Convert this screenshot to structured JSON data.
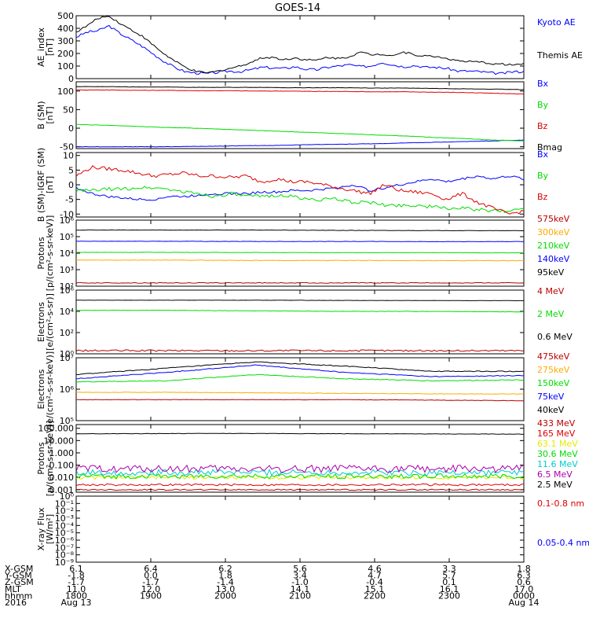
{
  "title": "GOES-14",
  "colors": {
    "black": "#000000",
    "blue": "#0000ff",
    "green": "#00dd00",
    "red": "#dd0000",
    "orange": "#ffaa00",
    "darkred": "#bb0000",
    "yellow": "#e8e800",
    "cyan": "#00cccc",
    "purple": "#aa00aa"
  },
  "chart_data": [
    {
      "type": "line",
      "ylabel": "AE_index\n[nT]",
      "yscale": "linear",
      "ylim": [
        0,
        500
      ],
      "yticks": [
        "500",
        "400",
        "300",
        "200",
        "100",
        "0"
      ],
      "series": [
        {
          "name": "Kyoto AE",
          "color": "blue",
          "noise": 10,
          "values": [
            330,
            370,
            380,
            420,
            360,
            310,
            260,
            200,
            140,
            90,
            55,
            45,
            40,
            50,
            60,
            55,
            70,
            90,
            85,
            80,
            95,
            75,
            70,
            90,
            100,
            110,
            95,
            100,
            130,
            110,
            95,
            105,
            90,
            90,
            80,
            60,
            60,
            55,
            45,
            40,
            55,
            55
          ]
        },
        {
          "name": "Themis AE",
          "color": "black",
          "noise": 8,
          "values": [
            370,
            420,
            480,
            500,
            440,
            390,
            340,
            270,
            200,
            140,
            90,
            55,
            45,
            60,
            80,
            100,
            130,
            165,
            170,
            150,
            165,
            150,
            145,
            170,
            160,
            175,
            210,
            190,
            195,
            185,
            210,
            190,
            180,
            175,
            160,
            140,
            135,
            130,
            120,
            115,
            110,
            115
          ]
        }
      ]
    },
    {
      "type": "line",
      "ylabel": "B (SM)\n[nT]",
      "yscale": "linear",
      "ylim": [
        -55,
        125
      ],
      "yticks": [
        "100",
        "50",
        "0",
        "-50"
      ],
      "series": [
        {
          "name": "Bx",
          "color": "blue",
          "noise": 0.5,
          "values": [
            -50,
            -50,
            -50,
            -50,
            -49,
            -48,
            -47,
            -46,
            -44,
            -43,
            -42,
            -40,
            -38,
            -36,
            -34,
            -32
          ]
        },
        {
          "name": "By",
          "color": "green",
          "noise": 0.5,
          "values": [
            10,
            8,
            5,
            2,
            0,
            -3,
            -6,
            -9,
            -12,
            -15,
            -18,
            -21,
            -25,
            -28,
            -32,
            -34
          ]
        },
        {
          "name": "Bz",
          "color": "red",
          "noise": 0.6,
          "values": [
            103,
            103,
            102,
            102,
            101,
            101,
            100,
            100,
            99,
            99,
            98,
            98,
            97,
            96,
            94,
            92
          ]
        },
        {
          "name": "Bmag",
          "color": "black",
          "noise": 0.4,
          "values": [
            112,
            112,
            111,
            111,
            110,
            110,
            110,
            109,
            109,
            109,
            108,
            108,
            107,
            106,
            105,
            104
          ]
        }
      ]
    },
    {
      "type": "line",
      "ylabel": "B (SM)-IGRF (SM)\n[nT]",
      "yscale": "linear",
      "ylim": [
        -11,
        11
      ],
      "yticks": [
        "10",
        "5",
        "0",
        "-5",
        "-10"
      ],
      "series": [
        {
          "name": "Bx",
          "color": "blue",
          "noise": 0.4,
          "values": [
            -1,
            -3,
            -4,
            -4.5,
            -5,
            -5,
            -4,
            -4,
            -3.5,
            -3,
            -3,
            -3,
            -2.5,
            -2.5,
            -2,
            -2,
            -1.5,
            -1,
            0,
            -2,
            -1,
            0,
            1,
            2,
            1,
            2,
            3,
            2,
            3,
            2
          ]
        },
        {
          "name": "By",
          "color": "green",
          "noise": 0.6,
          "values": [
            -2,
            -2,
            -1.5,
            -1.5,
            -1,
            -1,
            -1.5,
            -2.5,
            -3,
            -4,
            -3,
            -4,
            -4,
            -3.5,
            -4,
            -5,
            -5,
            -5,
            -6,
            -6,
            -7,
            -7,
            -7,
            -7.5,
            -8,
            -8,
            -8.5,
            -9,
            -9,
            -8
          ]
        },
        {
          "name": "Bz",
          "color": "red",
          "noise": 0.6,
          "values": [
            3,
            6,
            5.5,
            5,
            4,
            3,
            3.5,
            4,
            3,
            3,
            2.5,
            3,
            1,
            2,
            1,
            1,
            0,
            -1,
            -2,
            -3,
            0,
            -2,
            -2.5,
            -3,
            -5,
            -3,
            -6,
            -8,
            -10,
            -9
          ]
        }
      ]
    },
    {
      "type": "line",
      "ylabel": "Protons\n[p/(cm²-s-sr-keV)]",
      "yscale": "log",
      "ylim": [
        2,
        6
      ],
      "yticks": [
        "10⁶",
        "10⁵",
        "10⁴",
        "10³",
        "10²"
      ],
      "series": [
        {
          "name": "575keV",
          "color": "darkred",
          "noise": 0.02,
          "values": [
            2.2,
            2.2,
            2.2,
            2.2,
            2.2,
            2.2
          ]
        },
        {
          "name": "300keV",
          "color": "orange",
          "noise": 0.015,
          "values": [
            3.58,
            3.58,
            3.56,
            3.56,
            3.55,
            3.55
          ]
        },
        {
          "name": "210keV",
          "color": "green",
          "noise": 0.01,
          "values": [
            4.05,
            4.05,
            4.04,
            4.03,
            4.03,
            4.02
          ]
        },
        {
          "name": "140keV",
          "color": "blue",
          "noise": 0.01,
          "values": [
            4.72,
            4.72,
            4.71,
            4.71,
            4.7,
            4.7
          ]
        },
        {
          "name": "95keV",
          "color": "black",
          "noise": 0.01,
          "values": [
            5.4,
            5.4,
            5.4,
            5.38,
            5.37,
            5.36
          ]
        }
      ]
    },
    {
      "type": "line",
      "ylabel": "Electrons\n[e/(cm²-s-sr)]",
      "yscale": "log",
      "ylim": [
        0,
        6
      ],
      "yticks": [
        "10⁶",
        "10⁴",
        "10²",
        "10⁰"
      ],
      "series": [
        {
          "name": "4 MeV",
          "color": "darkred",
          "noise": 0.08,
          "values": [
            0.3,
            0.3,
            0.3,
            0.3,
            0.3,
            0.3
          ]
        },
        {
          "name": "2 MeV",
          "color": "green",
          "noise": 0.015,
          "values": [
            4.1,
            4.1,
            4.05,
            4.0,
            4.0,
            3.95
          ]
        },
        {
          "name": "0.6 MeV",
          "color": "black",
          "noise": 0.01,
          "values": [
            5.05,
            5.05,
            5.05,
            5.03,
            5.02,
            5.0
          ]
        }
      ]
    },
    {
      "type": "line",
      "ylabel": "Electrons\n[e/(cm²-s-sr-keV)]",
      "yscale": "log",
      "ylim": [
        4,
        7
      ],
      "yticks": [
        "10⁷",
        "10⁶",
        "10⁵"
      ],
      "series": [
        {
          "name": "475keV",
          "color": "darkred",
          "noise": 0.01,
          "values": [
            5.0,
            5.0,
            5.0,
            5.0,
            4.98,
            4.95
          ]
        },
        {
          "name": "275keV",
          "color": "orange",
          "noise": 0.01,
          "values": [
            5.35,
            5.35,
            5.33,
            5.3,
            5.28,
            5.27
          ]
        },
        {
          "name": "150keV",
          "color": "green",
          "noise": 0.02,
          "values": [
            5.85,
            5.9,
            6.2,
            6.0,
            5.9,
            5.95
          ]
        },
        {
          "name": "75keV",
          "color": "blue",
          "noise": 0.02,
          "values": [
            6.0,
            6.3,
            6.65,
            6.3,
            6.1,
            6.15
          ]
        },
        {
          "name": "40keV",
          "color": "black",
          "noise": 0.02,
          "values": [
            6.2,
            6.5,
            6.8,
            6.6,
            6.35,
            6.35
          ]
        }
      ]
    },
    {
      "type": "line",
      "ylabel": "Protons\n[p/(cm²-s-sr-keV)]",
      "yscale": "log",
      "ylim": [
        -3.2,
        2.3
      ],
      "yticks": [
        "100.000",
        "10.000",
        "1.000",
        "0.100",
        "0.010",
        "0.001"
      ],
      "series": [
        {
          "name": "433 MeV",
          "color": "darkred",
          "noise": 0.05,
          "values": [
            -3,
            -3,
            -3,
            -3
          ]
        },
        {
          "name": "165 MeV",
          "color": "red",
          "noise": 0.08,
          "values": [
            -2.6,
            -2.6,
            -2.6,
            -2.6
          ]
        },
        {
          "name": "63.1 MeV",
          "color": "yellow",
          "noise": 0.15,
          "values": [
            -2.0,
            -2.0,
            -2.0,
            -2.0
          ]
        },
        {
          "name": "30.6 MeV",
          "color": "green",
          "noise": 0.2,
          "values": [
            -1.9,
            -1.9,
            -1.9,
            -1.9
          ]
        },
        {
          "name": "11.6 MeV",
          "color": "cyan",
          "noise": 0.25,
          "values": [
            -1.6,
            -1.6,
            -1.6,
            -1.6
          ]
        },
        {
          "name": "6.5 MeV",
          "color": "purple",
          "noise": 0.3,
          "values": [
            -1.3,
            -1.3,
            -1.3,
            -1.3
          ]
        },
        {
          "name": "2.5 MeV",
          "color": "black",
          "noise": 0.015,
          "values": [
            1.55,
            1.58,
            1.55,
            1.52
          ]
        }
      ]
    },
    {
      "type": "line",
      "ylabel": "X-ray Flux\n[W/m²]",
      "yscale": "log",
      "ylim": [
        -9,
        0
      ],
      "yticks": [
        "10⁰",
        "10⁻¹",
        "10⁻²",
        "10⁻³",
        "10⁻⁴",
        "10⁻⁵",
        "10⁻⁶",
        "10⁻⁷",
        "10⁻⁸",
        "10⁻⁹"
      ],
      "series": [
        {
          "name": "0.1-0.8 nm",
          "color": "red",
          "values": []
        },
        {
          "name": "0.05-0.4 nm",
          "color": "blue",
          "values": []
        }
      ]
    }
  ],
  "ephemeris": {
    "rows": [
      {
        "label": "X-GSM",
        "values": [
          "6.1",
          "6.4",
          "6.2",
          "5.6",
          "4.6",
          "3.3",
          "1.8"
        ]
      },
      {
        "label": "Y-GSM",
        "values": [
          "-1.8",
          "0.0",
          "1.8",
          "3.4",
          "4.7",
          "5.7",
          "6.3"
        ]
      },
      {
        "label": "Z-GSM",
        "values": [
          "-1.7",
          "-1.7",
          "-1.4",
          "-1.0",
          "-0.4",
          "0.1",
          "0.6"
        ]
      },
      {
        "label": "MLT",
        "values": [
          "11.0",
          "12.0",
          "13.0",
          "14.1",
          "15.1",
          "16.1",
          "17.0"
        ]
      },
      {
        "label": "hhmm",
        "values": [
          "1800",
          "1900",
          "2000",
          "2100",
          "2200",
          "2300",
          "0000"
        ]
      }
    ],
    "year": "2016",
    "date_start": "Aug 13",
    "date_end": "Aug 14"
  }
}
